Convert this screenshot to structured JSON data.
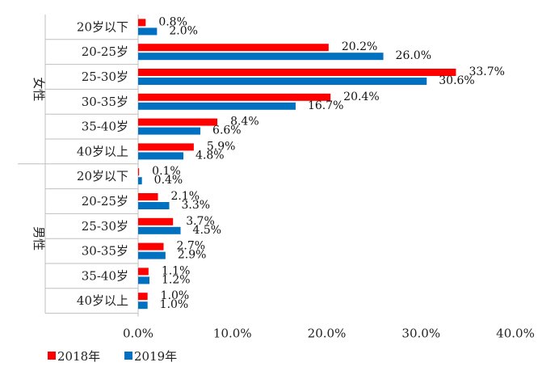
{
  "chart_data": {
    "type": "bar",
    "orientation": "horizontal",
    "title": "",
    "xlabel": "",
    "ylabel": "",
    "xlim": [
      0,
      40
    ],
    "x_ticks": [
      "0.0%",
      "10.0%",
      "20.0%",
      "30.0%",
      "40.0%"
    ],
    "groups": [
      {
        "label": "女性",
        "categories": [
          "20岁以下",
          "20-25岁",
          "25-30岁",
          "30-35岁",
          "35-40岁",
          "40岁以上"
        ]
      },
      {
        "label": "男性",
        "categories": [
          "20岁以下",
          "20-25岁",
          "25-30岁",
          "30-35岁",
          "35-40岁",
          "40岁以上"
        ]
      }
    ],
    "series": [
      {
        "name": "2018年",
        "color": "#ff0000",
        "values": [
          0.8,
          20.2,
          33.7,
          20.4,
          8.4,
          5.9,
          0.1,
          2.1,
          3.7,
          2.7,
          1.1,
          1.0
        ],
        "labels": [
          "0.8%",
          "20.2%",
          "33.7%",
          "20.4%",
          "8.4%",
          "5.9%",
          "0.1%",
          "2.1%",
          "3.7%",
          "2.7%",
          "1.1%",
          "1.0%"
        ]
      },
      {
        "name": "2019年",
        "color": "#0070c0",
        "values": [
          2.0,
          26.0,
          30.6,
          16.7,
          6.6,
          4.8,
          0.4,
          3.3,
          4.5,
          2.9,
          1.2,
          1.0
        ],
        "labels": [
          "2.0%",
          "26.0%",
          "30.6%",
          "16.7%",
          "6.6%",
          "4.8%",
          "0.4%",
          "3.3%",
          "4.5%",
          "2.9%",
          "1.2%",
          "1.0%"
        ]
      }
    ],
    "legend": {
      "position": "bottom-left"
    },
    "grid": false
  }
}
